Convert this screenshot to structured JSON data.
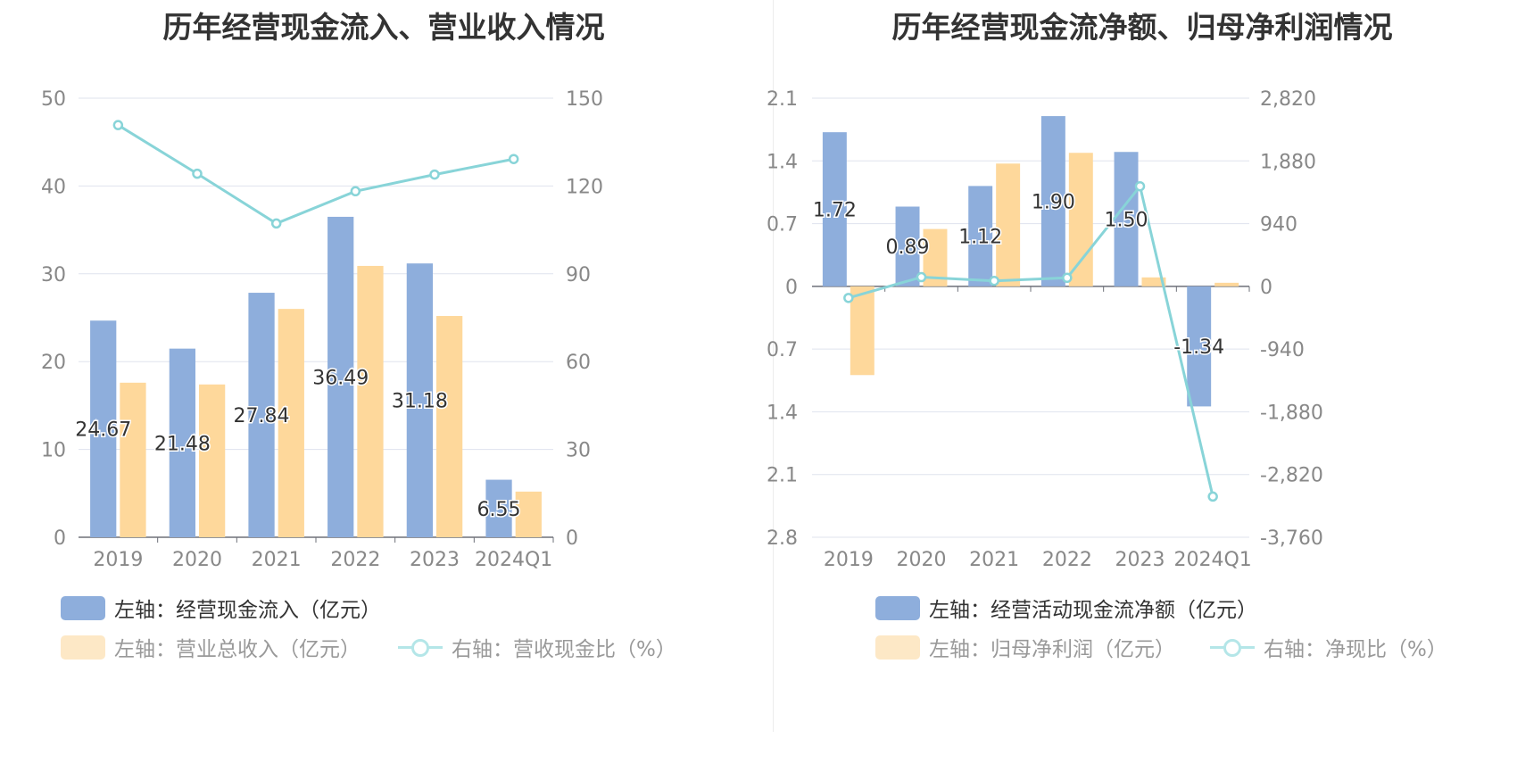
{
  "colors": {
    "blue": "#8eaedc",
    "orange": "#fed89b",
    "line": "#88d4d8",
    "grid": "#dfe3ee",
    "axis_text": "#888888",
    "label_text": "#333333"
  },
  "chart_data": [
    {
      "type": "bar",
      "title": "历年经营现金流入、营业收入情况",
      "categories": [
        "2019",
        "2020",
        "2021",
        "2022",
        "2023",
        "2024Q1"
      ],
      "left_axis": {
        "ylim": [
          0,
          50
        ],
        "ticks": [
          "0",
          "10",
          "20",
          "30",
          "40",
          "50"
        ]
      },
      "right_axis": {
        "ylim": [
          0,
          150
        ],
        "ticks": [
          "0",
          "30",
          "60",
          "90",
          "120",
          "150"
        ]
      },
      "series": [
        {
          "name": "左轴：经营现金流入（亿元）",
          "axis": "left",
          "kind": "bar",
          "color": "blue",
          "values": [
            24.67,
            21.48,
            27.84,
            36.49,
            31.18,
            6.55
          ],
          "labels": [
            "24.67",
            "21.48",
            "27.84",
            "36.49",
            "31.18",
            "6.55"
          ]
        },
        {
          "name": "左轴：营业总收入（亿元）",
          "axis": "left",
          "kind": "bar",
          "color": "orange",
          "values": [
            17.6,
            17.4,
            26.0,
            30.9,
            25.2,
            5.2
          ]
        },
        {
          "name": "右轴：营收现金比（%）",
          "axis": "right",
          "kind": "line",
          "color": "line",
          "values": [
            140.8,
            124.2,
            107.2,
            118.2,
            123.9,
            129.2
          ]
        }
      ],
      "legend": [
        {
          "label": "左轴：经营现金流入（亿元）",
          "style": "bar-blue",
          "state": "active"
        },
        {
          "label": "左轴：营业总收入（亿元）",
          "style": "bar-orange",
          "state": "muted"
        },
        {
          "label": "右轴：营收现金比（%）",
          "style": "line",
          "state": "muted"
        }
      ]
    },
    {
      "type": "bar",
      "title": "历年经营现金流净额、归母净利润情况",
      "categories": [
        "2019",
        "2020",
        "2021",
        "2022",
        "2023",
        "2024Q1"
      ],
      "left_axis": {
        "ylim": [
          -2.8,
          2.1
        ],
        "ticks": [
          "-2.8",
          "-2.1",
          "-1.4",
          "-0.7",
          "0",
          "0.7",
          "1.4",
          "2.1"
        ]
      },
      "right_axis": {
        "ylim": [
          -3760,
          2820
        ],
        "ticks": [
          "-3,760",
          "-2,820",
          "-1,880",
          "-940",
          "0",
          "940",
          "1,880",
          "2,820"
        ]
      },
      "series": [
        {
          "name": "左轴：经营活动现金流净额（亿元）",
          "axis": "left",
          "kind": "bar",
          "color": "blue",
          "values": [
            1.72,
            0.89,
            1.12,
            1.9,
            1.5,
            -1.34
          ],
          "labels": [
            "1.72",
            "0.89",
            "1.12",
            "1.90",
            "1.50",
            "-1.34"
          ]
        },
        {
          "name": "左轴：归母净利润（亿元）",
          "axis": "left",
          "kind": "bar",
          "color": "orange",
          "values": [
            -0.99,
            0.64,
            1.37,
            1.49,
            0.1,
            0.04
          ]
        },
        {
          "name": "右轴：净现比（%）",
          "axis": "right",
          "kind": "line",
          "color": "line",
          "values": [
            -174,
            138,
            82,
            128,
            1500,
            -3150
          ]
        }
      ],
      "legend": [
        {
          "label": "左轴：经营活动现金流净额（亿元）",
          "style": "bar-blue",
          "state": "active"
        },
        {
          "label": "左轴：归母净利润（亿元）",
          "style": "bar-orange",
          "state": "muted"
        },
        {
          "label": "右轴：净现比（%）",
          "style": "line",
          "state": "muted"
        }
      ]
    }
  ]
}
